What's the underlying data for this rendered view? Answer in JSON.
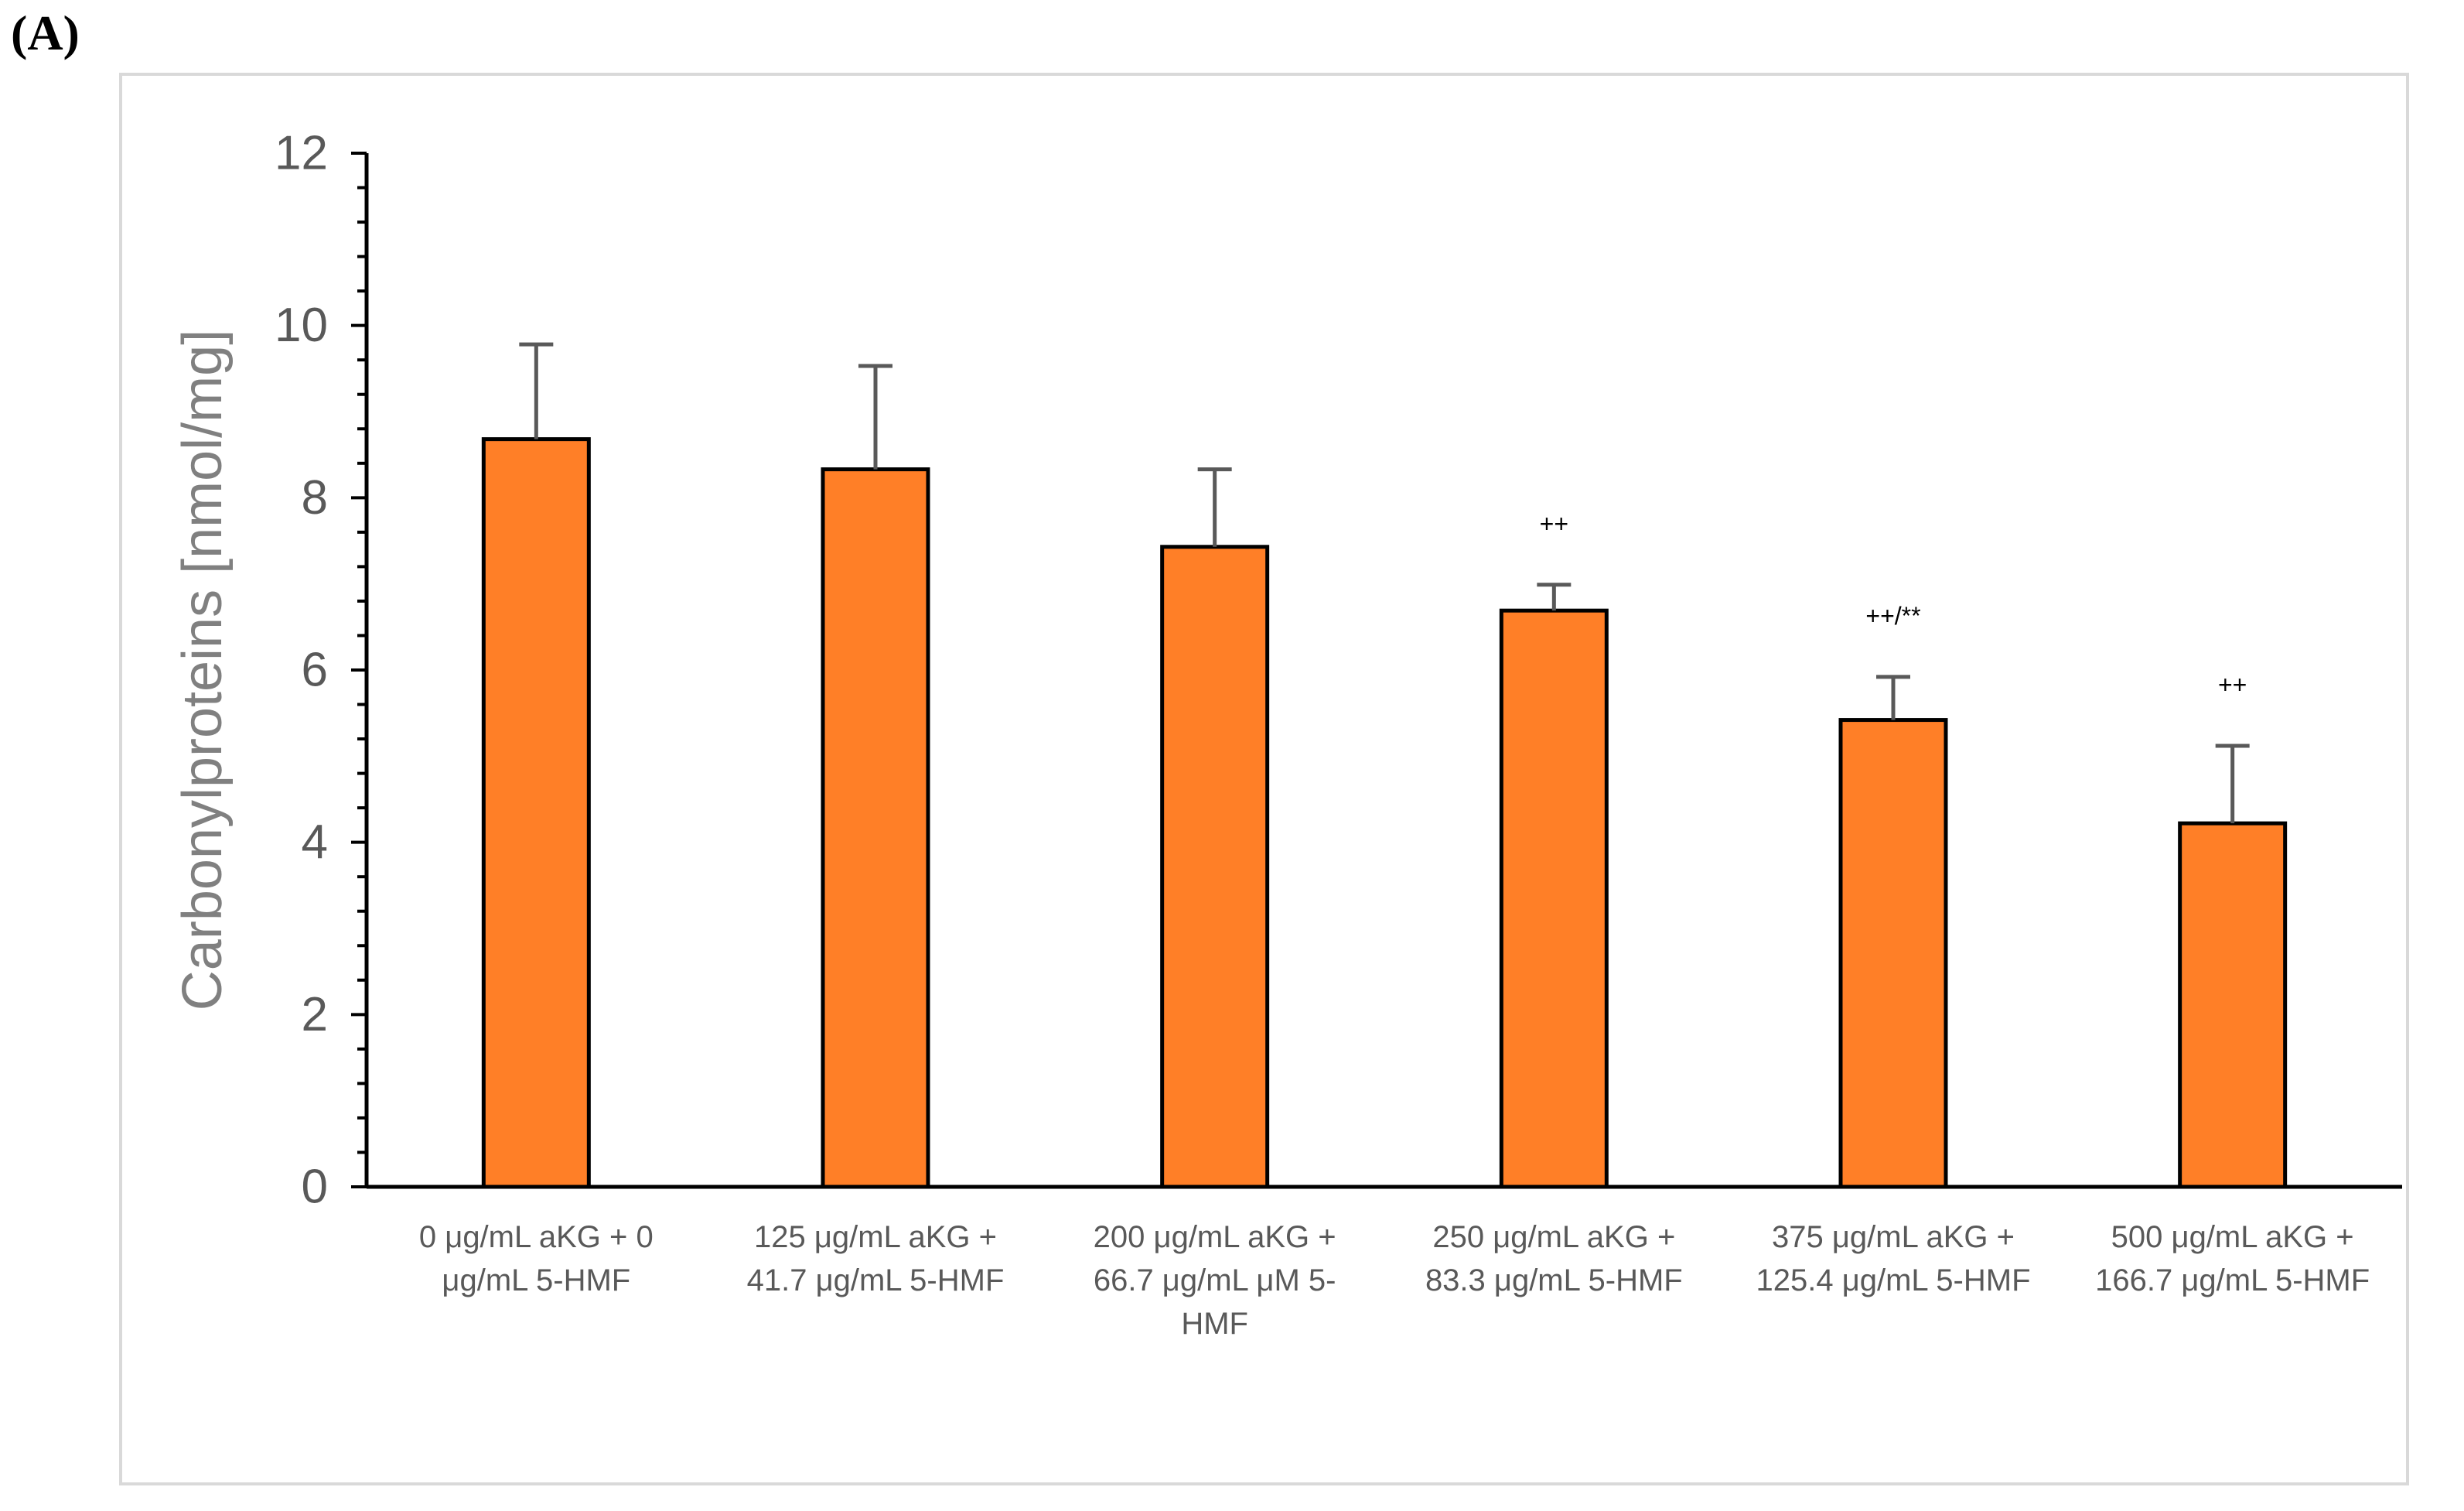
{
  "panel_label": "(A)",
  "chart_data": {
    "type": "bar",
    "title": "",
    "xlabel": "",
    "ylabel": "Carbonylproteins [nmol/mg]",
    "ylim": [
      0,
      12
    ],
    "y_major_ticks": [
      0,
      2,
      4,
      6,
      8,
      10,
      12
    ],
    "y_minor_step": 0.4,
    "grid": false,
    "legend": "none",
    "categories": [
      [
        "0 μg/mL aKG + 0",
        "μg/mL 5-HMF"
      ],
      [
        "125 μg/mL aKG +",
        "41.7 μg/mL 5-HMF"
      ],
      [
        "200 μg/mL aKG +",
        "66.7 μg/mL μM 5-",
        "HMF"
      ],
      [
        "250 μg/mL aKG +",
        "83.3 μg/mL 5-HMF"
      ],
      [
        "375 μg/mL aKG +",
        "125.4 μg/mL 5-HMF"
      ],
      [
        "500 μg/mL aKG +",
        "166.7 μg/mL 5-HMF"
      ]
    ],
    "values": [
      8.68,
      8.33,
      7.43,
      6.69,
      5.42,
      4.22
    ],
    "error_plus": [
      1.1,
      1.2,
      0.9,
      0.3,
      0.5,
      0.9
    ],
    "significance": [
      "",
      "",
      "",
      "++",
      "++/**",
      "++"
    ],
    "colors": {
      "bar_fill": "#FF7F27",
      "bar_stroke": "#000000",
      "error_bar": "#595959",
      "axis": "#000000",
      "tick_label": "#595959",
      "axis_title": "#808080",
      "frame": "#D9D9D9"
    }
  }
}
